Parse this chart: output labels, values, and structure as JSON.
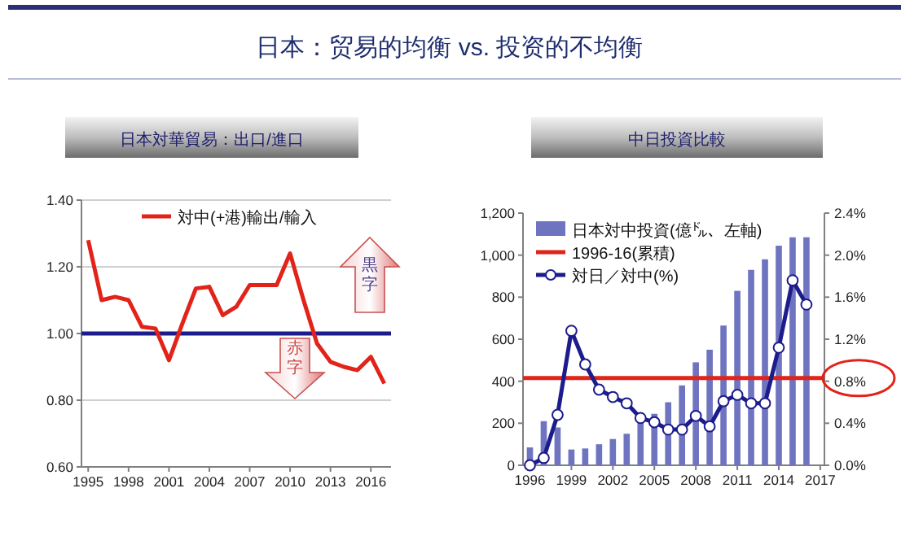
{
  "chart_data": [
    {
      "type": "line",
      "title": "日本対華貿易：出口/進口",
      "annotations": [
        "日本：贸易的均衡 vs. 投资的不均衡",
        "黒字",
        "赤字"
      ],
      "x": [
        1995,
        1996,
        1997,
        1998,
        1999,
        2000,
        2001,
        2002,
        2003,
        2004,
        2005,
        2006,
        2007,
        2008,
        2009,
        2010,
        2011,
        2012,
        2013,
        2014,
        2015,
        2016,
        2017
      ],
      "series": [
        {
          "name": "対中(+港)輸出/輸入",
          "color": "#e2231a",
          "values": [
            1.28,
            1.1,
            1.11,
            1.1,
            1.02,
            1.015,
            0.92,
            1.03,
            1.135,
            1.14,
            1.055,
            1.08,
            1.145,
            1.145,
            1.145,
            1.24,
            1.1,
            0.97,
            0.915,
            0.9,
            0.89,
            0.93,
            0.85
          ]
        }
      ],
      "xlim": [
        1994.5,
        2017.5
      ],
      "xticks": [
        1995,
        1998,
        2001,
        2004,
        2007,
        2010,
        2013,
        2016
      ],
      "ylim": [
        0.6,
        1.4
      ],
      "yticks": [
        {
          "value": 0.6,
          "label": "0.60"
        },
        {
          "value": 0.8,
          "label": "0.80"
        },
        {
          "value": 1.0,
          "label": "1.00"
        },
        {
          "value": 1.2,
          "label": "1.20"
        },
        {
          "value": 1.4,
          "label": "1.40"
        }
      ],
      "ref_lines": [
        {
          "axis": "y",
          "value": 1.0,
          "color": "#1c1c8c"
        }
      ],
      "grid": "y",
      "legend": "top"
    },
    {
      "type": "bar",
      "title": "中日投資比較",
      "x": [
        1996,
        1997,
        1998,
        1999,
        2000,
        2001,
        2002,
        2003,
        2004,
        2005,
        2006,
        2007,
        2008,
        2009,
        2010,
        2011,
        2012,
        2013,
        2014,
        2015,
        2016
      ],
      "series": [
        {
          "name": "日本対中投資(億㌦、左軸)",
          "color": "#6f74c0",
          "values": [
            85,
            210,
            180,
            75,
            80,
            100,
            125,
            150,
            220,
            245,
            300,
            380,
            490,
            550,
            665,
            830,
            930,
            980,
            1045,
            1085,
            1085
          ]
        },
        {
          "name": "対日／対中(%)",
          "type": "line",
          "axis": "y2",
          "marker": "circle",
          "color": "#1c1c8c",
          "values": [
            0.0,
            0.07,
            0.48,
            1.28,
            0.96,
            0.72,
            0.65,
            0.59,
            0.45,
            0.41,
            0.34,
            0.34,
            0.47,
            0.37,
            0.61,
            0.67,
            0.59,
            0.59,
            1.12,
            1.76,
            1.53
          ]
        }
      ],
      "xlim": [
        1995.5,
        2017.3
      ],
      "xticks": [
        1996,
        1999,
        2002,
        2005,
        2008,
        2011,
        2014,
        2017
      ],
      "ylim": [
        0,
        1200
      ],
      "yticks": [
        0,
        200,
        400,
        600,
        800,
        {
          "value": 1000,
          "label": "1,000"
        },
        {
          "value": 1200,
          "label": "1,200"
        }
      ],
      "y2lim": [
        0,
        2.4
      ],
      "y2ticks": [
        {
          "value": 0,
          "label": "0.0%"
        },
        {
          "value": 0.4,
          "label": "0.4%"
        },
        {
          "value": 0.8,
          "label": "0.8%"
        },
        {
          "value": 1.2,
          "label": "1.2%"
        },
        {
          "value": 1.6,
          "label": "1.6%"
        },
        {
          "value": 2.0,
          "label": "2.0%"
        },
        {
          "value": 2.4,
          "label": "2.4%"
        }
      ],
      "ref_lines": [
        {
          "axis": "y2",
          "value": 0.83,
          "label": "1996-16(累積)",
          "color": "#e2231a"
        }
      ],
      "legend": "top left"
    }
  ]
}
